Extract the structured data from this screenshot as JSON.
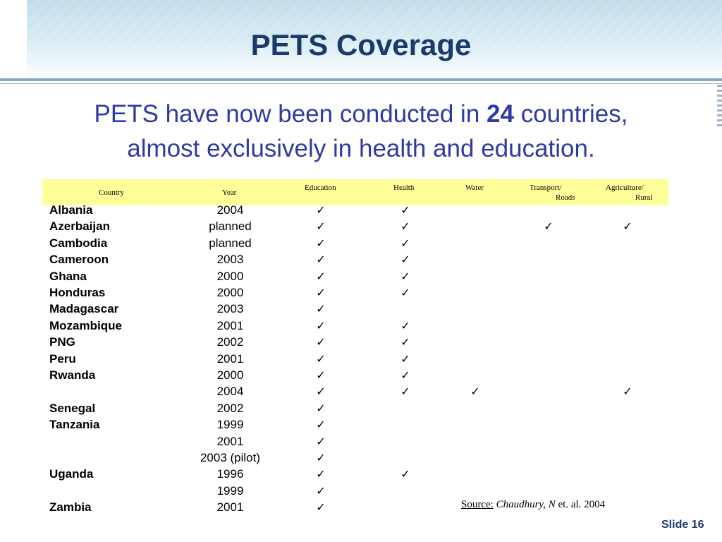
{
  "title": "PETS Coverage",
  "subtitle": {
    "line1_prefix": "PETS have now been conducted in ",
    "count": "24",
    "line1_suffix": " countries,",
    "line2": "almost exclusively in health and education."
  },
  "table": {
    "headers": {
      "country": "Country",
      "year": "Year",
      "education": "Education",
      "health": "Health",
      "water": "Water",
      "transport_line1": "Transport/",
      "transport_line2": "Roads",
      "agriculture_line1": "Agriculture/",
      "agriculture_line2": "Rural"
    },
    "check_glyph": "✓",
    "rows": [
      {
        "country": "Albania",
        "year": "2004",
        "education": true,
        "health": true,
        "water": false,
        "transport": false,
        "agriculture": false
      },
      {
        "country": "Azerbaijan",
        "year": "planned",
        "education": true,
        "health": true,
        "water": false,
        "transport": true,
        "agriculture": true
      },
      {
        "country": "Cambodia",
        "year": "planned",
        "education": true,
        "health": true,
        "water": false,
        "transport": false,
        "agriculture": false
      },
      {
        "country": "Cameroon",
        "year": "2003",
        "education": true,
        "health": true,
        "water": false,
        "transport": false,
        "agriculture": false
      },
      {
        "country": "Ghana",
        "year": "2000",
        "education": true,
        "health": true,
        "water": false,
        "transport": false,
        "agriculture": false
      },
      {
        "country": "Honduras",
        "year": "2000",
        "education": true,
        "health": true,
        "water": false,
        "transport": false,
        "agriculture": false
      },
      {
        "country": "Madagascar",
        "year": "2003",
        "education": true,
        "health": false,
        "water": false,
        "transport": false,
        "agriculture": false
      },
      {
        "country": "Mozambique",
        "year": "2001",
        "education": true,
        "health": true,
        "water": false,
        "transport": false,
        "agriculture": false
      },
      {
        "country": "PNG",
        "year": "2002",
        "education": true,
        "health": true,
        "water": false,
        "transport": false,
        "agriculture": false
      },
      {
        "country": "Peru",
        "year": "2001",
        "education": true,
        "health": true,
        "water": false,
        "transport": false,
        "agriculture": false
      },
      {
        "country": "Rwanda",
        "year": "2000",
        "education": true,
        "health": true,
        "water": false,
        "transport": false,
        "agriculture": false
      },
      {
        "country": "",
        "year": "2004",
        "education": true,
        "health": true,
        "water": true,
        "transport": false,
        "agriculture": true
      },
      {
        "country": "Senegal",
        "year": "2002",
        "education": true,
        "health": false,
        "water": false,
        "transport": false,
        "agriculture": false
      },
      {
        "country": "Tanzania",
        "year": "1999",
        "education": true,
        "health": false,
        "water": false,
        "transport": false,
        "agriculture": false
      },
      {
        "country": "",
        "year": "2001",
        "education": true,
        "health": false,
        "water": false,
        "transport": false,
        "agriculture": false
      },
      {
        "country": "",
        "year": "2003 (pilot)",
        "education": true,
        "health": false,
        "water": false,
        "transport": false,
        "agriculture": false
      },
      {
        "country": "Uganda",
        "year": "1996",
        "education": true,
        "health": true,
        "water": false,
        "transport": false,
        "agriculture": false
      },
      {
        "country": "",
        "year": "1999",
        "education": true,
        "health": false,
        "water": false,
        "transport": false,
        "agriculture": false
      },
      {
        "country": "Zambia",
        "year": "2001",
        "education": true,
        "health": false,
        "water": false,
        "transport": false,
        "agriculture": false
      }
    ]
  },
  "source": {
    "label": "Source:",
    "author": "Chaudhury, N",
    "rest": " et. al. 2004"
  },
  "slide_number": "Slide 16",
  "colors": {
    "title": "#1b3a6b",
    "subtitle": "#2e3ba0",
    "table_header_bg": "#ffff99"
  }
}
